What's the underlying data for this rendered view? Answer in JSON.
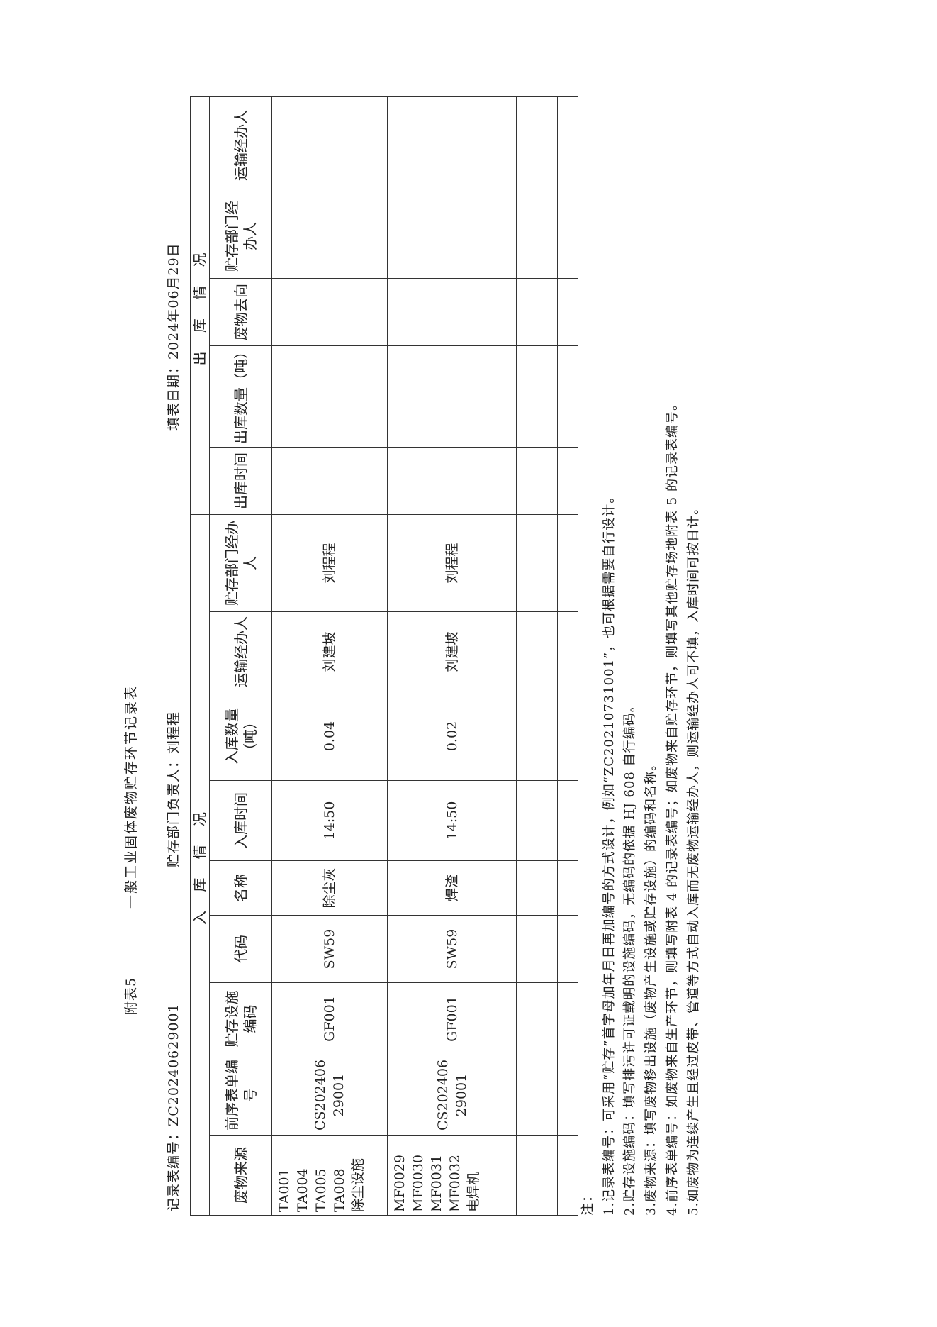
{
  "header": {
    "appendix": "附表5",
    "title": "一般工业固体废物贮存环节记录表",
    "record_no": "记录表编号：ZC20240629001",
    "dept_head": "贮存部门负责人：刘程程",
    "fill_date": "填表日期：2024年06月29日"
  },
  "table": {
    "group_in": "入 库 情 况",
    "group_out": "出 库 情 况",
    "columns": [
      "废物来源",
      "前序表单编号",
      "贮存设施编码",
      "代码",
      "名称",
      "入库时间",
      "入库数量（吨）",
      "运输经办人",
      "贮存部门经办人",
      "出库时间",
      "出库数量（吨）",
      "废物去向",
      "贮存部门经办人",
      "运输经办人"
    ],
    "rows": [
      {
        "source": [
          "TA001",
          "TA004",
          "TA005",
          "TA008",
          "除尘设施"
        ],
        "prev_form": "CS20240629001",
        "facility": "GF001",
        "code": "SW59",
        "name": "除尘灰",
        "in_time": "14:50",
        "in_qty": "0.04",
        "transporter": "刘建坡",
        "keeper": "刘程程",
        "out_time": "",
        "out_qty": "",
        "destination": "",
        "out_keeper": "",
        "out_transporter": ""
      },
      {
        "source": [
          "MF0029",
          "MF0030",
          "MF0031",
          "MF0032",
          "电焊机"
        ],
        "prev_form": "CS20240629001",
        "facility": "GF001",
        "code": "SW59",
        "name": "焊渣",
        "in_time": "14:50",
        "in_qty": "0.02",
        "transporter": "刘建坡",
        "keeper": "刘程程",
        "out_time": "",
        "out_qty": "",
        "destination": "",
        "out_keeper": "",
        "out_transporter": ""
      }
    ]
  },
  "notes": {
    "label": "注：",
    "items": [
      "1.记录表编号：可采用“贮存”首字母加年月日再加编号的方式设计，例如“ZC20210731001”，也可根据需要自行设计。",
      "2.贮存设施编码：填写排污许可证载明的设施编码，无编码的依据 HJ 608 自行编码。",
      "3.废物来源：填写废物移出设施（废物产生设施或贮存设施）的编码和名称。",
      "4.前序表单编号：如废物来自生产环节，则填写附表 4 的记录表编号；如废物来自贮存环节，则填写其他贮存场地附表 5 的记录表编号。",
      "5.如废物为连续产生且经过皮带、管道等方式自动入库而无废物运输经办人，则运输经办人可不填，入库时间可按日计。"
    ]
  }
}
